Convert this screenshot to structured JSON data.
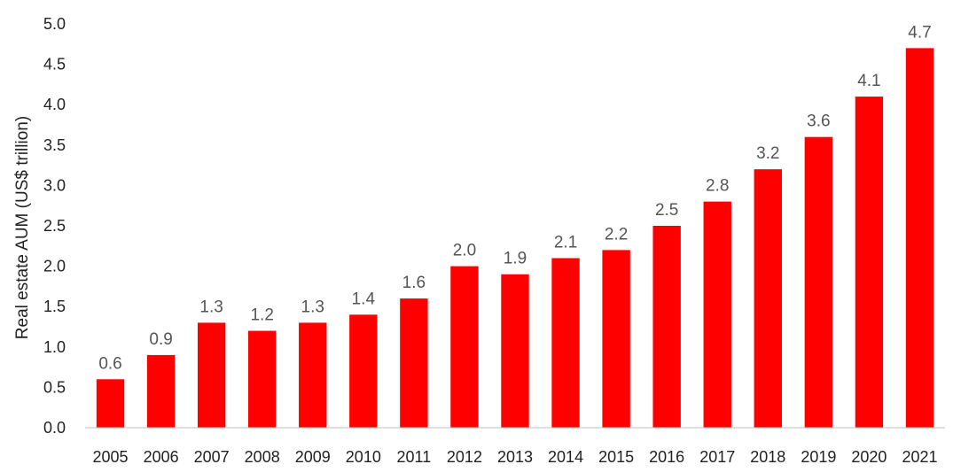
{
  "chart_data": {
    "type": "bar",
    "title": "",
    "xlabel": "",
    "ylabel": "Real estate AUM (US$ trillion)",
    "ylim": [
      0,
      5.0
    ],
    "yticks": [
      "0.0",
      "0.5",
      "1.0",
      "1.5",
      "2.0",
      "2.5",
      "3.0",
      "3.5",
      "4.0",
      "4.5",
      "5.0"
    ],
    "grid": false,
    "legend": "none",
    "bar_color": "#ff0000",
    "categories": [
      "2005",
      "2006",
      "2007",
      "2008",
      "2009",
      "2010",
      "2011",
      "2012",
      "2013",
      "2014",
      "2015",
      "2016",
      "2017",
      "2018",
      "2019",
      "2020",
      "2021"
    ],
    "values": [
      0.6,
      0.9,
      1.3,
      1.2,
      1.3,
      1.4,
      1.6,
      2.0,
      1.9,
      2.1,
      2.2,
      2.5,
      2.8,
      3.2,
      3.6,
      4.1,
      4.7
    ],
    "data_labels": [
      "0.6",
      "0.9",
      "1.3",
      "1.2",
      "1.3",
      "1.4",
      "1.6",
      "2.0",
      "1.9",
      "2.1",
      "2.2",
      "2.5",
      "2.8",
      "3.2",
      "3.6",
      "4.1",
      "4.7"
    ]
  }
}
